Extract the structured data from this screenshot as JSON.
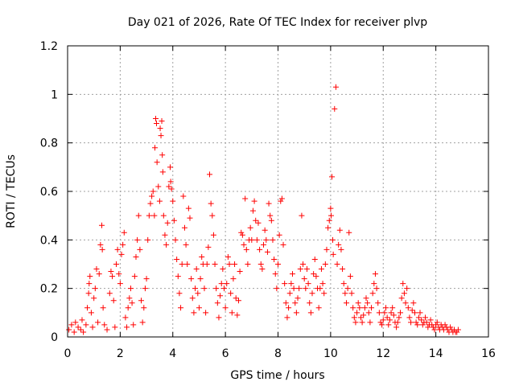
{
  "chart_data": {
    "type": "scatter",
    "title": "Day 021 of 2026, Rate Of TEC Index for receiver plvp",
    "xlabel": "GPS time / hours",
    "ylabel": "ROTI / TECUs",
    "xlim": [
      0,
      16
    ],
    "ylim": [
      0,
      1.2
    ],
    "xticks": [
      0,
      2,
      4,
      6,
      8,
      10,
      12,
      14,
      16
    ],
    "xtick_labels": [
      "0",
      "2",
      "4",
      "6",
      "8",
      "10",
      "12",
      "14",
      "16"
    ],
    "yticks": [
      0,
      0.2,
      0.4,
      0.6,
      0.8,
      1,
      1.2
    ],
    "ytick_labels": [
      "0",
      "0.2",
      "0.4",
      "0.6",
      "0.8",
      "1",
      "1.2"
    ],
    "grid": true,
    "marker": "+",
    "color": "#ff0000",
    "series": [
      {
        "name": "ROTI",
        "points": [
          [
            0.05,
            0.03
          ],
          [
            0.15,
            0.05
          ],
          [
            0.25,
            0.02
          ],
          [
            0.3,
            0.06
          ],
          [
            0.4,
            0.04
          ],
          [
            0.5,
            0.03
          ],
          [
            0.55,
            0.07
          ],
          [
            0.6,
            0.02
          ],
          [
            0.7,
            0.05
          ],
          [
            0.75,
            0.12
          ],
          [
            0.8,
            0.18
          ],
          [
            0.82,
            0.22
          ],
          [
            0.85,
            0.25
          ],
          [
            0.9,
            0.1
          ],
          [
            0.95,
            0.04
          ],
          [
            1.0,
            0.16
          ],
          [
            1.05,
            0.2
          ],
          [
            1.1,
            0.28
          ],
          [
            1.15,
            0.06
          ],
          [
            1.2,
            0.26
          ],
          [
            1.25,
            0.38
          ],
          [
            1.3,
            0.46
          ],
          [
            1.32,
            0.36
          ],
          [
            1.35,
            0.12
          ],
          [
            1.4,
            0.05
          ],
          [
            1.5,
            0.03
          ],
          [
            1.6,
            0.18
          ],
          [
            1.65,
            0.27
          ],
          [
            1.7,
            0.25
          ],
          [
            1.75,
            0.15
          ],
          [
            1.8,
            0.04
          ],
          [
            1.85,
            0.3
          ],
          [
            1.9,
            0.36
          ],
          [
            1.95,
            0.26
          ],
          [
            2.0,
            0.22
          ],
          [
            2.05,
            0.34
          ],
          [
            2.1,
            0.38
          ],
          [
            2.15,
            0.43
          ],
          [
            2.2,
            0.08
          ],
          [
            2.25,
            0.04
          ],
          [
            2.3,
            0.12
          ],
          [
            2.35,
            0.16
          ],
          [
            2.4,
            0.2
          ],
          [
            2.45,
            0.14
          ],
          [
            2.5,
            0.05
          ],
          [
            2.55,
            0.25
          ],
          [
            2.6,
            0.33
          ],
          [
            2.65,
            0.4
          ],
          [
            2.7,
            0.5
          ],
          [
            2.75,
            0.36
          ],
          [
            2.8,
            0.15
          ],
          [
            2.85,
            0.06
          ],
          [
            2.9,
            0.12
          ],
          [
            2.95,
            0.2
          ],
          [
            3.0,
            0.24
          ],
          [
            3.05,
            0.4
          ],
          [
            3.1,
            0.5
          ],
          [
            3.15,
            0.55
          ],
          [
            3.2,
            0.58
          ],
          [
            3.25,
            0.6
          ],
          [
            3.3,
            0.5
          ],
          [
            3.32,
            0.78
          ],
          [
            3.35,
            0.9
          ],
          [
            3.38,
            0.88
          ],
          [
            3.4,
            0.72
          ],
          [
            3.45,
            0.62
          ],
          [
            3.5,
            0.56
          ],
          [
            3.52,
            0.86
          ],
          [
            3.55,
            0.83
          ],
          [
            3.58,
            0.89
          ],
          [
            3.6,
            0.75
          ],
          [
            3.62,
            0.68
          ],
          [
            3.65,
            0.5
          ],
          [
            3.7,
            0.42
          ],
          [
            3.75,
            0.38
          ],
          [
            3.8,
            0.47
          ],
          [
            3.85,
            0.62
          ],
          [
            3.9,
            0.7
          ],
          [
            3.92,
            0.64
          ],
          [
            3.95,
            0.61
          ],
          [
            4.0,
            0.56
          ],
          [
            4.05,
            0.48
          ],
          [
            4.1,
            0.4
          ],
          [
            4.15,
            0.32
          ],
          [
            4.2,
            0.25
          ],
          [
            4.25,
            0.18
          ],
          [
            4.3,
            0.12
          ],
          [
            4.35,
            0.3
          ],
          [
            4.4,
            0.58
          ],
          [
            4.45,
            0.45
          ],
          [
            4.5,
            0.38
          ],
          [
            4.55,
            0.3
          ],
          [
            4.6,
            0.53
          ],
          [
            4.65,
            0.49
          ],
          [
            4.7,
            0.24
          ],
          [
            4.75,
            0.16
          ],
          [
            4.8,
            0.1
          ],
          [
            4.85,
            0.2
          ],
          [
            4.9,
            0.28
          ],
          [
            4.95,
            0.18
          ],
          [
            5.0,
            0.12
          ],
          [
            5.05,
            0.24
          ],
          [
            5.1,
            0.33
          ],
          [
            5.15,
            0.3
          ],
          [
            5.2,
            0.2
          ],
          [
            5.25,
            0.1
          ],
          [
            5.3,
            0.3
          ],
          [
            5.35,
            0.37
          ],
          [
            5.4,
            0.67
          ],
          [
            5.45,
            0.55
          ],
          [
            5.5,
            0.5
          ],
          [
            5.55,
            0.42
          ],
          [
            5.6,
            0.3
          ],
          [
            5.65,
            0.2
          ],
          [
            5.7,
            0.14
          ],
          [
            5.75,
            0.08
          ],
          [
            5.8,
            0.17
          ],
          [
            5.85,
            0.22
          ],
          [
            5.9,
            0.28
          ],
          [
            5.95,
            0.2
          ],
          [
            6.0,
            0.12
          ],
          [
            6.05,
            0.22
          ],
          [
            6.1,
            0.33
          ],
          [
            6.15,
            0.3
          ],
          [
            6.2,
            0.18
          ],
          [
            6.25,
            0.1
          ],
          [
            6.3,
            0.24
          ],
          [
            6.35,
            0.3
          ],
          [
            6.4,
            0.16
          ],
          [
            6.45,
            0.09
          ],
          [
            6.5,
            0.15
          ],
          [
            6.55,
            0.27
          ],
          [
            6.6,
            0.43
          ],
          [
            6.65,
            0.42
          ],
          [
            6.7,
            0.38
          ],
          [
            6.75,
            0.57
          ],
          [
            6.8,
            0.36
          ],
          [
            6.85,
            0.3
          ],
          [
            6.9,
            0.4
          ],
          [
            6.95,
            0.45
          ],
          [
            7.0,
            0.4
          ],
          [
            7.05,
            0.52
          ],
          [
            7.1,
            0.56
          ],
          [
            7.15,
            0.48
          ],
          [
            7.2,
            0.4
          ],
          [
            7.25,
            0.47
          ],
          [
            7.3,
            0.36
          ],
          [
            7.35,
            0.3
          ],
          [
            7.4,
            0.28
          ],
          [
            7.45,
            0.38
          ],
          [
            7.5,
            0.44
          ],
          [
            7.55,
            0.4
          ],
          [
            7.6,
            0.35
          ],
          [
            7.65,
            0.55
          ],
          [
            7.7,
            0.5
          ],
          [
            7.75,
            0.48
          ],
          [
            7.8,
            0.4
          ],
          [
            7.85,
            0.32
          ],
          [
            7.9,
            0.26
          ],
          [
            7.95,
            0.2
          ],
          [
            8.0,
            0.3
          ],
          [
            8.05,
            0.42
          ],
          [
            8.1,
            0.56
          ],
          [
            8.15,
            0.57
          ],
          [
            8.2,
            0.38
          ],
          [
            8.25,
            0.22
          ],
          [
            8.3,
            0.14
          ],
          [
            8.35,
            0.08
          ],
          [
            8.4,
            0.12
          ],
          [
            8.45,
            0.18
          ],
          [
            8.5,
            0.22
          ],
          [
            8.55,
            0.26
          ],
          [
            8.6,
            0.2
          ],
          [
            8.65,
            0.14
          ],
          [
            8.7,
            0.1
          ],
          [
            8.75,
            0.16
          ],
          [
            8.8,
            0.2
          ],
          [
            8.85,
            0.28
          ],
          [
            8.9,
            0.5
          ],
          [
            8.95,
            0.3
          ],
          [
            9.0,
            0.24
          ],
          [
            9.05,
            0.2
          ],
          [
            9.1,
            0.28
          ],
          [
            9.15,
            0.22
          ],
          [
            9.2,
            0.14
          ],
          [
            9.25,
            0.1
          ],
          [
            9.3,
            0.18
          ],
          [
            9.35,
            0.26
          ],
          [
            9.4,
            0.32
          ],
          [
            9.45,
            0.25
          ],
          [
            9.5,
            0.2
          ],
          [
            9.55,
            0.12
          ],
          [
            9.6,
            0.2
          ],
          [
            9.65,
            0.28
          ],
          [
            9.7,
            0.22
          ],
          [
            9.75,
            0.18
          ],
          [
            9.8,
            0.3
          ],
          [
            9.85,
            0.36
          ],
          [
            9.9,
            0.45
          ],
          [
            9.95,
            0.48
          ],
          [
            10.0,
            0.53
          ],
          [
            10.02,
            0.5
          ],
          [
            10.05,
            0.66
          ],
          [
            10.08,
            0.4
          ],
          [
            10.1,
            0.34
          ],
          [
            10.15,
            0.94
          ],
          [
            10.2,
            1.03
          ],
          [
            10.25,
            0.3
          ],
          [
            10.3,
            0.38
          ],
          [
            10.35,
            0.44
          ],
          [
            10.4,
            0.36
          ],
          [
            10.45,
            0.28
          ],
          [
            10.5,
            0.22
          ],
          [
            10.55,
            0.18
          ],
          [
            10.6,
            0.14
          ],
          [
            10.65,
            0.2
          ],
          [
            10.7,
            0.43
          ],
          [
            10.75,
            0.25
          ],
          [
            10.8,
            0.18
          ],
          [
            10.85,
            0.12
          ],
          [
            10.9,
            0.08
          ],
          [
            10.95,
            0.06
          ],
          [
            11.0,
            0.1
          ],
          [
            11.05,
            0.14
          ],
          [
            11.1,
            0.12
          ],
          [
            11.15,
            0.08
          ],
          [
            11.2,
            0.06
          ],
          [
            11.25,
            0.09
          ],
          [
            11.3,
            0.12
          ],
          [
            11.35,
            0.16
          ],
          [
            11.4,
            0.14
          ],
          [
            11.45,
            0.1
          ],
          [
            11.5,
            0.06
          ],
          [
            11.55,
            0.12
          ],
          [
            11.6,
            0.18
          ],
          [
            11.65,
            0.22
          ],
          [
            11.7,
            0.26
          ],
          [
            11.75,
            0.2
          ],
          [
            11.8,
            0.14
          ],
          [
            11.85,
            0.1
          ],
          [
            11.9,
            0.06
          ],
          [
            11.95,
            0.05
          ],
          [
            12.0,
            0.07
          ],
          [
            12.05,
            0.1
          ],
          [
            12.1,
            0.12
          ],
          [
            12.15,
            0.08
          ],
          [
            12.2,
            0.05
          ],
          [
            12.25,
            0.07
          ],
          [
            12.3,
            0.1
          ],
          [
            12.35,
            0.12
          ],
          [
            12.4,
            0.09
          ],
          [
            12.45,
            0.06
          ],
          [
            12.5,
            0.04
          ],
          [
            12.55,
            0.06
          ],
          [
            12.6,
            0.08
          ],
          [
            12.65,
            0.1
          ],
          [
            12.7,
            0.16
          ],
          [
            12.75,
            0.22
          ],
          [
            12.8,
            0.18
          ],
          [
            12.85,
            0.14
          ],
          [
            12.9,
            0.2
          ],
          [
            12.95,
            0.12
          ],
          [
            13.0,
            0.08
          ],
          [
            13.05,
            0.06
          ],
          [
            13.1,
            0.11
          ],
          [
            13.15,
            0.14
          ],
          [
            13.2,
            0.1
          ],
          [
            13.25,
            0.06
          ],
          [
            13.3,
            0.05
          ],
          [
            13.35,
            0.08
          ],
          [
            13.4,
            0.1
          ],
          [
            13.45,
            0.07
          ],
          [
            13.5,
            0.05
          ],
          [
            13.55,
            0.06
          ],
          [
            13.6,
            0.08
          ],
          [
            13.65,
            0.06
          ],
          [
            13.7,
            0.04
          ],
          [
            13.75,
            0.05
          ],
          [
            13.8,
            0.07
          ],
          [
            13.85,
            0.05
          ],
          [
            13.9,
            0.04
          ],
          [
            13.95,
            0.03
          ],
          [
            14.0,
            0.05
          ],
          [
            14.05,
            0.06
          ],
          [
            14.1,
            0.04
          ],
          [
            14.15,
            0.03
          ],
          [
            14.2,
            0.05
          ],
          [
            14.25,
            0.04
          ],
          [
            14.3,
            0.03
          ],
          [
            14.35,
            0.05
          ],
          [
            14.4,
            0.04
          ],
          [
            14.45,
            0.03
          ],
          [
            14.5,
            0.02
          ],
          [
            14.55,
            0.04
          ],
          [
            14.6,
            0.03
          ],
          [
            14.65,
            0.02
          ],
          [
            14.7,
            0.03
          ],
          [
            14.75,
            0.02
          ],
          [
            14.8,
            0.02
          ],
          [
            14.85,
            0.03
          ]
        ]
      }
    ]
  }
}
